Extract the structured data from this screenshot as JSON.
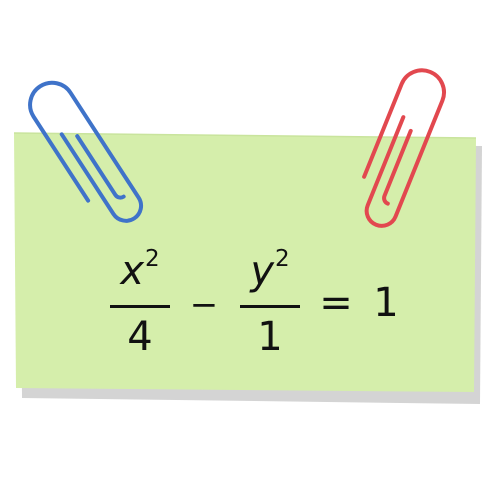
{
  "colors": {
    "card_fill": "#d5eeab",
    "card_shadow": "#d4d4d4",
    "clip_left": "#3f73c9",
    "clip_right": "#e2484f",
    "text": "#111111"
  },
  "icons": [
    "paperclip-icon",
    "paperclip-icon"
  ],
  "equation": {
    "term1": {
      "variable": "x",
      "exponent": "2",
      "denominator": "4"
    },
    "operator": "−",
    "term2": {
      "variable": "y",
      "exponent": "2",
      "denominator": "1"
    },
    "equals": "=",
    "rhs": "1"
  }
}
